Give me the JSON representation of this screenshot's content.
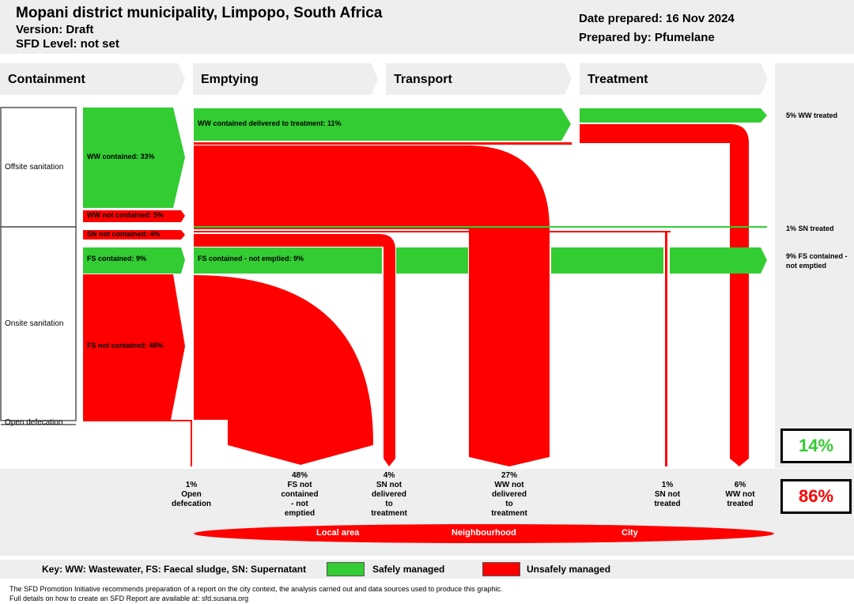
{
  "header": {
    "title": "Mopani district municipality, Limpopo, South Africa",
    "version": "Version: Draft",
    "sfd_level": "SFD Level: not set",
    "date_prepared": "Date prepared: 16 Nov 2024",
    "prepared_by": "Prepared by: Pfumelane"
  },
  "stages": [
    "Containment",
    "Emptying",
    "Transport",
    "Treatment"
  ],
  "categories": {
    "offsite": "Offsite sanitation",
    "onsite": "Onsite sanitation",
    "open": "Open defecation"
  },
  "flows": {
    "ww_contained": "WW contained: 33%",
    "ww_not_contained": "WW not contained: 5%",
    "sn_not_contained": "SN not contained: 4%",
    "fs_contained": "FS contained: 9%",
    "fs_not_contained": "FS not contained: 48%",
    "ww_delivered": "WW contained delivered to treatment: 11%",
    "fs_not_emptied": "FS contained - not emptied: 9%"
  },
  "right_labels": {
    "ww_treated": "5% WW treated",
    "sn_treated": "1% SN treated",
    "fs_contained_not_emptied": "9% FS contained - not emptied"
  },
  "totals": {
    "safe": "14%",
    "unsafe": "86%"
  },
  "outcomes": [
    {
      "pct": "1%",
      "label": "Open defecation"
    },
    {
      "pct": "48%",
      "label": "FS not contained - not emptied"
    },
    {
      "pct": "4%",
      "label": "SN not delivered to treatment"
    },
    {
      "pct": "27%",
      "label": "WW not delivered to treatment"
    },
    {
      "pct": "1%",
      "label": "SN not treated"
    },
    {
      "pct": "6%",
      "label": "WW not treated"
    }
  ],
  "areas": [
    "Local area",
    "Neighbourhood",
    "City"
  ],
  "key": {
    "text": "Key: WW: Wastewater, FS: Faecal sludge, SN: Supernatant",
    "safe": "Safely managed",
    "unsafe": "Unsafely managed"
  },
  "footer": {
    "line1": "The SFD Promotion Initiative recommends preparation of a report on the city context, the analysis carried out and data sources used to produce this graphic.",
    "line2": "Full details on how to create an SFD Report are available at: sfd.susana.org"
  },
  "colors": {
    "safe": "#33cc33",
    "unsafe": "#ff0000",
    "panel": "#eeeeee"
  }
}
